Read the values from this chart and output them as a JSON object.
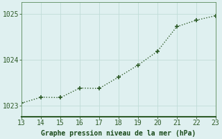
{
  "x": [
    13,
    14,
    15,
    16,
    17,
    18,
    19,
    20,
    21,
    22,
    23
  ],
  "y": [
    1023.05,
    1023.18,
    1023.17,
    1023.38,
    1023.37,
    1023.62,
    1023.88,
    1024.18,
    1024.72,
    1024.86,
    1024.96
  ],
  "xlim": [
    13,
    23
  ],
  "ylim": [
    1022.75,
    1025.25
  ],
  "yticks": [
    1023,
    1024,
    1025
  ],
  "xticks": [
    13,
    14,
    15,
    16,
    17,
    18,
    19,
    20,
    21,
    22,
    23
  ],
  "line_color": "#2d5a27",
  "marker": "+",
  "marker_size": 5,
  "marker_lw": 1.2,
  "line_width": 1.0,
  "bg_color": "#dff0f0",
  "plot_bg_color": "#dff0f0",
  "grid_color": "#c0dcd8",
  "grid_lw": 0.6,
  "xlabel": "Graphe pression niveau de la mer (hPa)",
  "xlabel_color": "#1a4a1a",
  "tick_color": "#2d5a27",
  "spine_color": "#5a8a5a",
  "bottom_border_color": "#2d5a27",
  "font_size": 7,
  "xlabel_fontsize": 7
}
